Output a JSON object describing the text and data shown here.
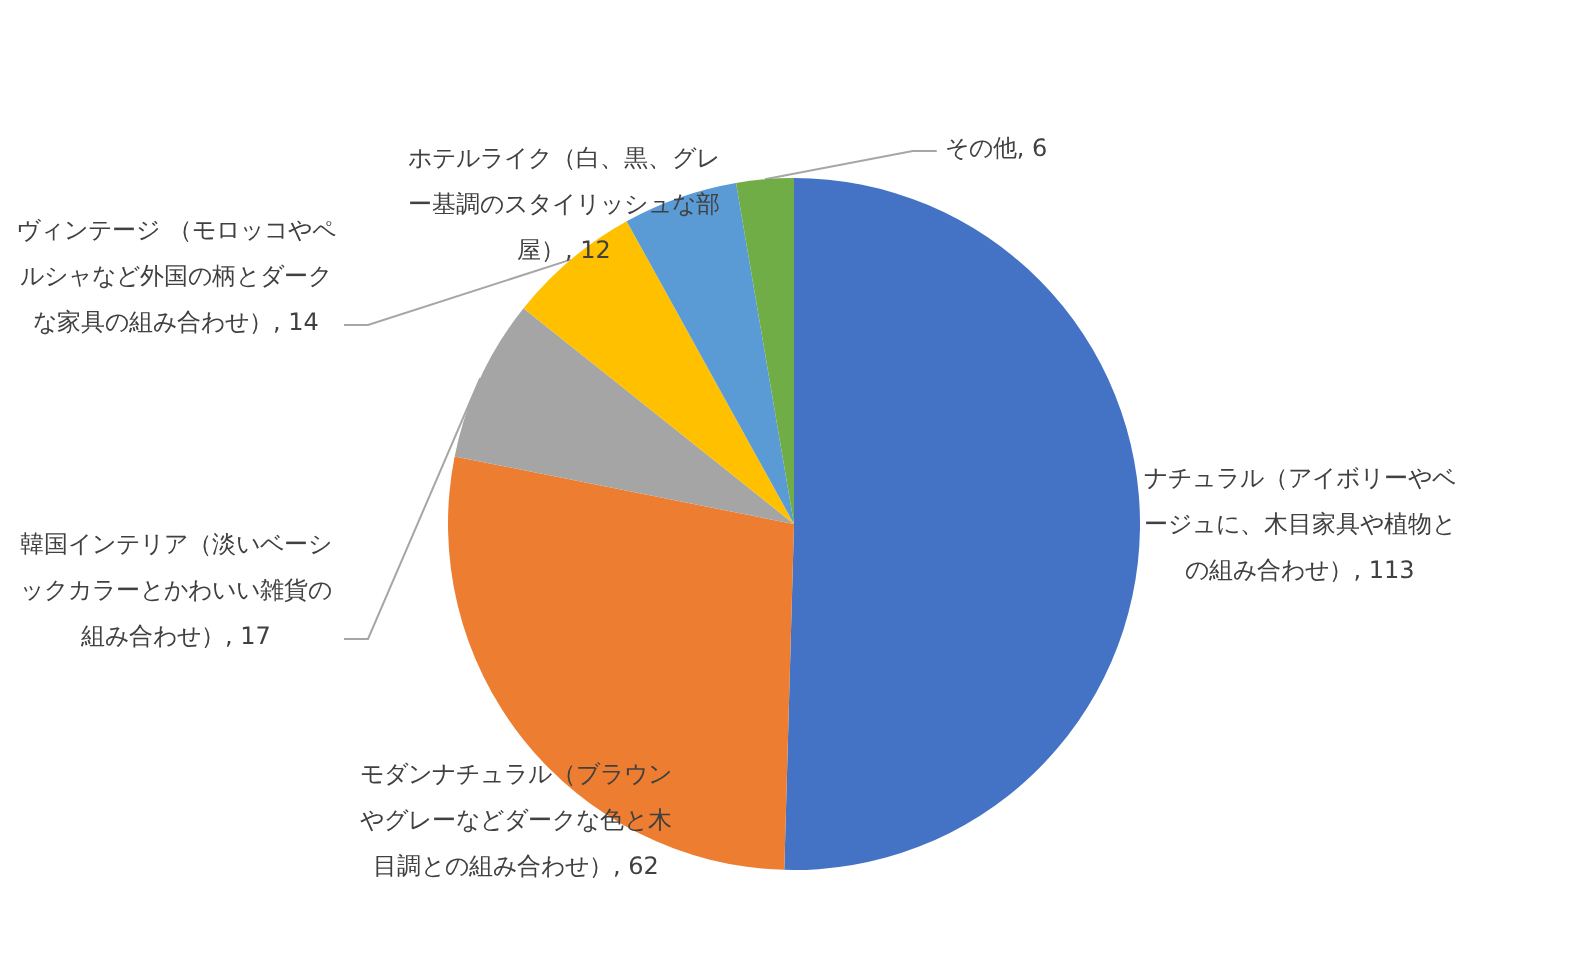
{
  "chart_data": {
    "type": "pie",
    "categories": [
      "ナチュラル（アイボリーやベージュに、木目家具や植物との組み合わせ）",
      "モダンナチュラル（ブラウンやグレーなどダークな色と木目調との組み合わせ）",
      "韓国インテリア（淡いベーシックカラーとかわいい雑貨の組み合わせ）",
      "ヴィンテージ （モロッコやペルシャなど外国の柄とダークな家具の組み合わせ）",
      "ホテルライク（白、黒、グレー基調のスタイリッシュな部屋）",
      "その他"
    ],
    "values": [
      113,
      62,
      17,
      14,
      12,
      6
    ],
    "colors": [
      "#4472c4",
      "#ed7d31",
      "#a5a5a5",
      "#ffc000",
      "#5b9bd5",
      "#70ad47"
    ],
    "value_labels": [
      ", 113",
      ", 62",
      ", 17",
      ", 14",
      ", 12",
      ", 6"
    ],
    "legend": false
  }
}
